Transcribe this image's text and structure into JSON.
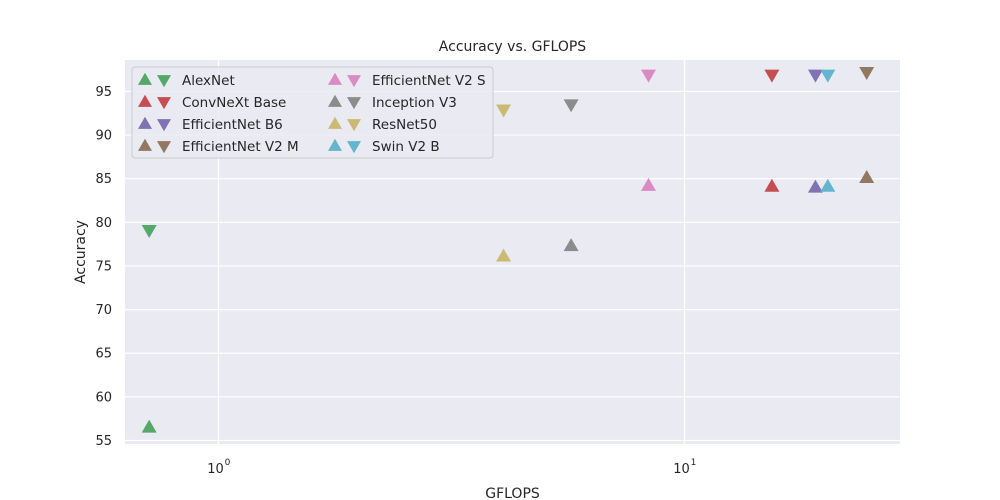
{
  "chart_data": {
    "type": "scatter",
    "title": "Accuracy vs. GFLOPS",
    "xlabel": "GFLOPS",
    "ylabel": "Accuracy",
    "xscale": "log",
    "xlim": [
      0.63,
      29
    ],
    "ylim": [
      54.6,
      98.6
    ],
    "x_ticks": [
      {
        "value": 1,
        "base": "10",
        "exp": "0"
      },
      {
        "value": 10,
        "base": "10",
        "exp": "1"
      }
    ],
    "y_ticks": [
      "55",
      "60",
      "65",
      "70",
      "75",
      "80",
      "85",
      "90",
      "95"
    ],
    "grid": true,
    "legend_placement": "top-left",
    "legend_marker_note": "▲ = top-1, ▼ = top-5 (shown only as marker shapes)",
    "series": [
      {
        "name": "AlexNet",
        "color": "#55a868",
        "gflops": 0.71,
        "up": 56.5,
        "down": 79.1
      },
      {
        "name": "ConvNeXt Base",
        "color": "#c44e52",
        "gflops": 15.4,
        "up": 84.1,
        "down": 96.9
      },
      {
        "name": "EfficientNet B6",
        "color": "#8172b3",
        "gflops": 19.1,
        "up": 84.0,
        "down": 96.9
      },
      {
        "name": "EfficientNet V2 M",
        "color": "#937860",
        "gflops": 24.6,
        "up": 85.1,
        "down": 97.2
      },
      {
        "name": "EfficientNet V2 S",
        "color": "#da8bc3",
        "gflops": 8.37,
        "up": 84.2,
        "down": 96.9
      },
      {
        "name": "Inception V3",
        "color": "#8c8c8c",
        "gflops": 5.71,
        "up": 77.3,
        "down": 93.5
      },
      {
        "name": "ResNet50",
        "color": "#ccb974",
        "gflops": 4.09,
        "up": 76.1,
        "down": 92.9
      },
      {
        "name": "Swin V2 B",
        "color": "#64b5cd",
        "gflops": 20.3,
        "up": 84.1,
        "down": 96.9
      }
    ]
  }
}
